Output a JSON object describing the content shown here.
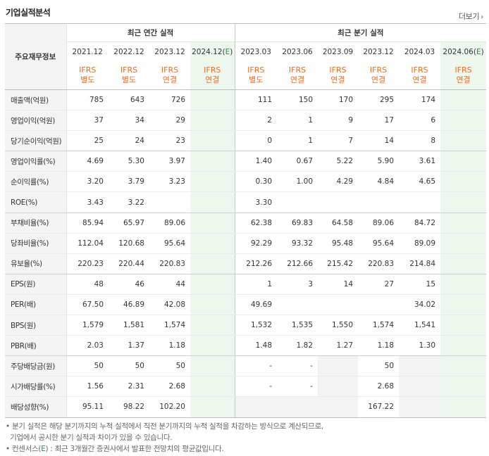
{
  "title": "기업실적분석",
  "more_label": "더보기",
  "label_header": "주요재무정보",
  "groups": {
    "annual": "최근 연간 실적",
    "quarterly": "최근 분기 실적"
  },
  "periods": [
    "2021.12",
    "2022.12",
    "2023.12",
    "2024.12(E)",
    "2023.03",
    "2023.06",
    "2023.09",
    "2023.12",
    "2024.03",
    "2024.06(E)"
  ],
  "basis": [
    [
      "IFRS",
      "별도"
    ],
    [
      "IFRS",
      "별도"
    ],
    [
      "IFRS",
      "연결"
    ],
    [
      "IFRS",
      "연결"
    ],
    [
      "IFRS",
      "별도"
    ],
    [
      "IFRS",
      "연결"
    ],
    [
      "IFRS",
      "연결"
    ],
    [
      "IFRS",
      "연결"
    ],
    [
      "IFRS",
      "연결"
    ],
    [
      "IFRS",
      "연결"
    ]
  ],
  "rows": [
    {
      "label": "매출액(억원)",
      "values": [
        "785",
        "643",
        "726",
        "",
        "111",
        "150",
        "170",
        "295",
        "174",
        ""
      ]
    },
    {
      "label": "영업이익(억원)",
      "values": [
        "37",
        "34",
        "29",
        "",
        "2",
        "1",
        "9",
        "17",
        "6",
        ""
      ]
    },
    {
      "label": "당기순이익(억원)",
      "values": [
        "25",
        "24",
        "23",
        "",
        "0",
        "1",
        "7",
        "14",
        "8",
        ""
      ]
    },
    {
      "label": "영업이익률(%)",
      "values": [
        "4.69",
        "5.30",
        "3.97",
        "",
        "1.40",
        "0.67",
        "5.22",
        "5.90",
        "3.61",
        ""
      ]
    },
    {
      "label": "순이익률(%)",
      "values": [
        "3.20",
        "3.79",
        "3.23",
        "",
        "0.30",
        "1.00",
        "4.29",
        "4.84",
        "4.65",
        ""
      ]
    },
    {
      "label": "ROE(%)",
      "values": [
        "3.43",
        "3.22",
        "",
        "",
        "3.30",
        "",
        "",
        "",
        "",
        ""
      ]
    },
    {
      "label": "부채비율(%)",
      "values": [
        "85.94",
        "65.97",
        "89.06",
        "",
        "62.38",
        "69.83",
        "64.58",
        "89.06",
        "84.72",
        ""
      ]
    },
    {
      "label": "당좌비율(%)",
      "values": [
        "112.04",
        "120.68",
        "95.64",
        "",
        "92.29",
        "93.32",
        "95.48",
        "95.64",
        "89.09",
        ""
      ]
    },
    {
      "label": "유보율(%)",
      "values": [
        "220.23",
        "220.44",
        "220.83",
        "",
        "212.26",
        "212.66",
        "215.42",
        "220.83",
        "214.84",
        ""
      ]
    },
    {
      "label": "EPS(원)",
      "values": [
        "48",
        "46",
        "44",
        "",
        "1",
        "3",
        "14",
        "27",
        "15",
        ""
      ]
    },
    {
      "label": "PER(배)",
      "values": [
        "67.50",
        "46.89",
        "42.08",
        "",
        "49.69",
        "",
        "",
        "",
        "34.02",
        ""
      ]
    },
    {
      "label": "BPS(원)",
      "values": [
        "1,579",
        "1,581",
        "1,574",
        "",
        "1,532",
        "1,535",
        "1,550",
        "1,574",
        "1,541",
        ""
      ]
    },
    {
      "label": "PBR(배)",
      "values": [
        "2.03",
        "1.37",
        "1.18",
        "",
        "1.48",
        "1.82",
        "1.27",
        "1.18",
        "1.30",
        ""
      ]
    },
    {
      "label": "주당배당금(원)",
      "values": [
        "50",
        "50",
        "50",
        "",
        "-",
        "-",
        "",
        "50",
        "",
        ""
      ]
    },
    {
      "label": "시가배당률(%)",
      "values": [
        "1.56",
        "2.31",
        "2.68",
        "",
        "-",
        "-",
        "",
        "2.68",
        "",
        ""
      ]
    },
    {
      "label": "배당성향(%)",
      "values": [
        "95.11",
        "98.22",
        "102.20",
        "",
        "",
        "",
        "",
        "167.22",
        "",
        ""
      ]
    }
  ],
  "notes": [
    "분기 실적은 해당 분기까지의 누적 실적에서 직전 분기까지의 누적 실적을 차감하는 방식으로 계산되므로,",
    "기업에서 공시한 분기 실적과 차이가 있을 수 있습니다."
  ],
  "consensus_note": {
    "prefix": "컨센서스(",
    "mark": "E",
    "suffix": ") : 최근 3개월간 증권사에서 발표한 전망치의 평균값입니다."
  }
}
